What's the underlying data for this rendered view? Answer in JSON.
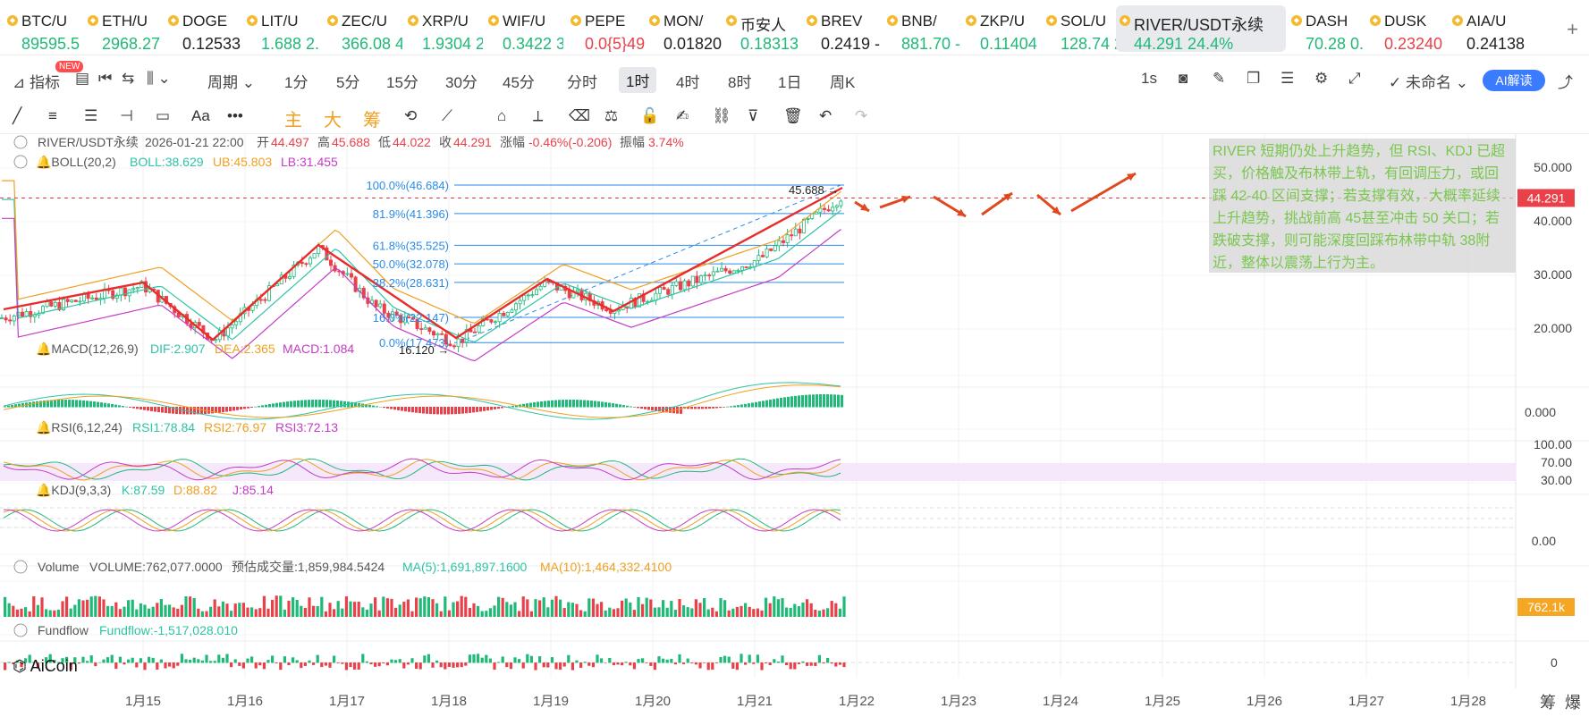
{
  "tickers": [
    {
      "symbol": "BTC/U",
      "price": "89595.5",
      "color": "#1fb978"
    },
    {
      "symbol": "ETH/U",
      "price": "2968.27",
      "color": "#1fb978"
    },
    {
      "symbol": "DOGE",
      "price": "0.12533",
      "color": "#222222"
    },
    {
      "symbol": "LIT/U",
      "price": "1.688 2.",
      "color": "#1fb978"
    },
    {
      "symbol": "ZEC/U",
      "price": "366.08 4",
      "color": "#1fb978"
    },
    {
      "symbol": "XRP/U",
      "price": "1.9304 2",
      "color": "#1fb978"
    },
    {
      "symbol": "WIF/U",
      "price": "0.3422 3",
      "color": "#1fb978"
    },
    {
      "symbol": "PEPE",
      "price": "0.0{5}49",
      "color": "#e8414a"
    },
    {
      "symbol": "MON/",
      "price": "0.01820",
      "color": "#222222"
    },
    {
      "symbol": "币安人",
      "price": "0.18313",
      "color": "#1fb978"
    },
    {
      "symbol": "BREV",
      "price": "0.2419 -",
      "color": "#222222"
    },
    {
      "symbol": "BNB/",
      "price": "881.70 -",
      "color": "#1fb978"
    },
    {
      "symbol": "ZKP/U",
      "price": "0.11404",
      "color": "#1fb978"
    },
    {
      "symbol": "SOL/U",
      "price": "128.74 2",
      "color": "#1fb978"
    },
    {
      "symbol": "RIVER/USDT永续",
      "price": "44.291  24.4%",
      "color": "#1fb978",
      "active": true
    },
    {
      "symbol": "DASH",
      "price": "70.28 0.",
      "color": "#1fb978"
    },
    {
      "symbol": "DUSK",
      "price": "0.23240",
      "color": "#e8414a"
    },
    {
      "symbol": "AIA/U",
      "price": "0.24138",
      "color": "#222222"
    }
  ],
  "add_tab": "+",
  "toolbar1": {
    "indicators": "指标",
    "new_badge": "NEW",
    "period": "周期",
    "intervals": [
      "1分",
      "5分",
      "15分",
      "30分",
      "45分",
      "分时",
      "1时",
      "4时",
      "8时",
      "1日",
      "周K"
    ],
    "selected_interval": "1时",
    "speed": "1s",
    "unnamed": "未命名",
    "ai_button": "AI解读"
  },
  "toolbar2": {
    "chinese_labels": [
      "主",
      "大",
      "筹"
    ]
  },
  "header": {
    "pair": "RIVER/USDT永续",
    "time": "2026-01-21 22:00",
    "open_label": "开",
    "open": "44.497",
    "high_label": "高",
    "high": "45.688",
    "low_label": "低",
    "low": "44.022",
    "close_label": "收",
    "close": "44.291",
    "change_label": "涨幅",
    "change": "-0.46%(-0.206)",
    "amp_label": "振幅",
    "amp": "3.74%"
  },
  "boll": {
    "name": "BOLL(20,2)",
    "boll": "BOLL:38.629",
    "ub": "UB:45.803",
    "lb": "LB:31.455"
  },
  "fib": [
    {
      "label": "100.0%(46.684)",
      "value": 46.684
    },
    {
      "label": "81.9%(41.396)",
      "value": 41.396
    },
    {
      "label": "61.8%(35.525)",
      "value": 35.525
    },
    {
      "label": "50.0%(32.078)",
      "value": 32.078
    },
    {
      "label": "38.2%(28.631)",
      "value": 28.631
    },
    {
      "label": "16.0%(22.147)",
      "value": 22.147
    },
    {
      "label": "0.0%(17.473)",
      "value": 17.473
    }
  ],
  "high_marker": "45.688 →",
  "low_marker": "16.120 →",
  "price_axis": [
    "50.000",
    "40.000",
    "30.000",
    "20.000"
  ],
  "current_price": "44.291",
  "macd": {
    "name": "MACD(12,26,9)",
    "dif": "DIF:2.907",
    "dea": "DEA:2.365",
    "macd": "MACD:1.084",
    "axis": "0.000"
  },
  "rsi": {
    "name": "RSI(6,12,24)",
    "rsi1": "RSI1:78.84",
    "rsi2": "RSI2:76.97",
    "rsi3": "RSI3:72.13",
    "axis": [
      "100.00",
      "70.00",
      "30.00"
    ]
  },
  "kdj": {
    "name": "KDJ(9,3,3)",
    "k": "K:87.59",
    "d": "D:88.82",
    "j": "J:85.14",
    "axis": "0.00"
  },
  "volume": {
    "name": "Volume",
    "vol": "VOLUME:762,077.0000",
    "est": "预估成交量:1,859,984.5424",
    "ma5": "MA(5):1,691,897.1600",
    "ma10": "MA(10):1,464,332.4100",
    "badge": "762.1k"
  },
  "fundflow": {
    "name": "Fundflow",
    "value": "Fundflow:-1,517,028.010",
    "axis": "0"
  },
  "logo": "AiCoin",
  "dates": [
    "1月15",
    "1月16",
    "1月17",
    "1月18",
    "1月19",
    "1月20",
    "1月21",
    "1月22",
    "1月23",
    "1月24",
    "1月25",
    "1月26",
    "1月27",
    "1月28"
  ],
  "bottom_right": [
    "筹",
    "爆"
  ],
  "note": "RIVER 短期仍处上升趋势，但 RSI、KDJ 已超买，价格触及布林带上轨，有回调压力，或回踩 42-40 区间支撑；若支撑有效，大概率延续上升趋势，挑战前高 45甚至冲击 50 关口；若跌破支撑，则可能深度回踩布林带中轨 38附近，整体以震荡上行为主。",
  "colors": {
    "up": "#1fb978",
    "down": "#e8414a",
    "fib": "#2a8be8",
    "trend": "#e82c2c",
    "arrow": "#e0481d",
    "boll_mid": "#2ec4a5",
    "boll_ub": "#f0a020",
    "boll_lb": "#c43cc7"
  }
}
